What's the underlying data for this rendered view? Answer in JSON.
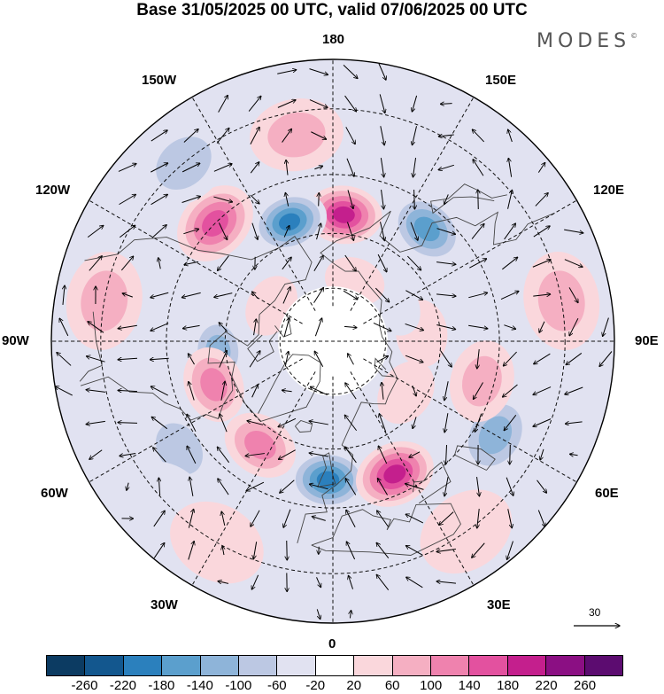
{
  "title": "Base 31/05/2025 00 UTC, valid 07/06/2025 00 UTC",
  "brand": "MODES",
  "brand_mark": "©",
  "meridian_labels": {
    "top": "180",
    "bottom": "0",
    "left": "90W",
    "right": "90E",
    "upper_left_1": "150W",
    "upper_left_2": "120W",
    "upper_right_1": "150E",
    "upper_right_2": "120E",
    "lower_left_1": "60W",
    "lower_left_2": "30W",
    "lower_right_1": "60E",
    "lower_right_2": "30E"
  },
  "reference_vector": {
    "value": "30",
    "icon": "arrow-right-icon"
  },
  "colorbar": {
    "colors": [
      "#0c3b62",
      "#13578e",
      "#2b80bd",
      "#5b9fcd",
      "#8eb4d9",
      "#bcc8e3",
      "#e1e2f1",
      "#ffffff",
      "#fad7dc",
      "#f5afc2",
      "#ef82ae",
      "#e3519f",
      "#c41f8d",
      "#8b0f83",
      "#5c0c70"
    ],
    "tick_labels": [
      "-260",
      "-220",
      "-180",
      "-140",
      "-100",
      "-60",
      "-20",
      "20",
      "60",
      "100",
      "140",
      "180",
      "220",
      "260"
    ]
  },
  "anomaly_field": {
    "units": "",
    "centers": [
      {
        "lon": 175,
        "lat": 55,
        "value": 200
      },
      {
        "lon": -160,
        "lat": 55,
        "value": -200
      },
      {
        "lon": 140,
        "lat": 50,
        "value": -170
      },
      {
        "lon": -135,
        "lat": 45,
        "value": 170
      },
      {
        "lon": -100,
        "lat": 30,
        "value": 90
      },
      {
        "lon": -85,
        "lat": 58,
        "value": -120
      },
      {
        "lon": -70,
        "lat": 55,
        "value": 110
      },
      {
        "lon": -55,
        "lat": 40,
        "value": -80
      },
      {
        "lon": -35,
        "lat": 55,
        "value": 110
      },
      {
        "lon": -2,
        "lat": 52,
        "value": -180
      },
      {
        "lon": 25,
        "lat": 50,
        "value": 180
      },
      {
        "lon": 60,
        "lat": 40,
        "value": -100
      },
      {
        "lon": 75,
        "lat": 48,
        "value": 70
      },
      {
        "lon": 100,
        "lat": 30,
        "value": 70
      },
      {
        "lon": 95,
        "lat": 65,
        "value": 50
      },
      {
        "lon": 120,
        "lat": 70,
        "value": -30
      },
      {
        "lon": -140,
        "lat": 30,
        "value": -60
      },
      {
        "lon": -170,
        "lat": 35,
        "value": 80
      },
      {
        "lon": 160,
        "lat": 35,
        "value": -50
      },
      {
        "lon": -45,
        "lat": 30,
        "value": -50
      },
      {
        "lon": -30,
        "lat": 30,
        "value": 50
      },
      {
        "lon": 5,
        "lat": 30,
        "value": -40
      },
      {
        "lon": 35,
        "lat": 30,
        "value": 50
      },
      {
        "lon": 55,
        "lat": 65,
        "value": 40
      },
      {
        "lon": -120,
        "lat": 70,
        "value": 40
      },
      {
        "lon": 160,
        "lat": 72,
        "value": 50
      }
    ]
  }
}
